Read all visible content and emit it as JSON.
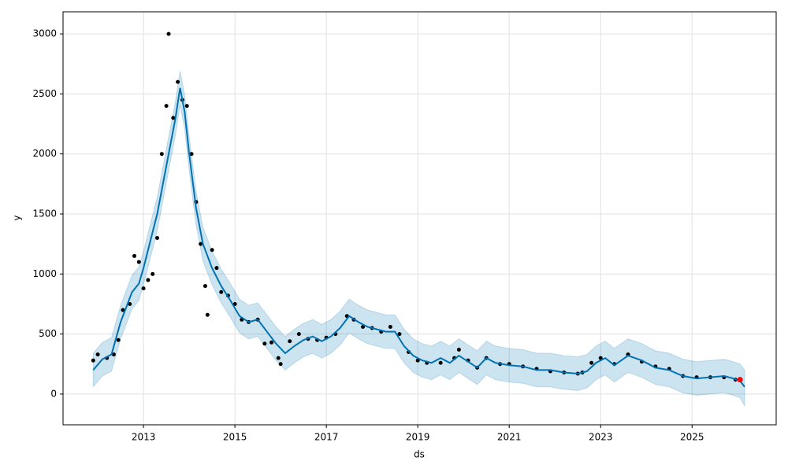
{
  "chart_data": {
    "type": "line",
    "xlabel": "ds",
    "ylabel": "y",
    "xlim": [
      2011.24,
      2026.84
    ],
    "ylim": [
      -256,
      3184
    ],
    "xticks": [
      2013,
      2015,
      2017,
      2019,
      2021,
      2023,
      2025
    ],
    "yticks": [
      0,
      500,
      1000,
      1500,
      2000,
      2500,
      3000
    ],
    "grid": true,
    "forecast": {
      "color": "#0072b2",
      "x": [
        2011.9,
        2012.1,
        2012.3,
        2012.5,
        2012.6,
        2012.75,
        2012.9,
        2013.0,
        2013.1,
        2013.3,
        2013.5,
        2013.7,
        2013.8,
        2013.9,
        2014.0,
        2014.15,
        2014.3,
        2014.5,
        2014.7,
        2014.9,
        2015.1,
        2015.3,
        2015.5,
        2015.7,
        2015.9,
        2016.1,
        2016.3,
        2016.5,
        2016.7,
        2016.9,
        2017.1,
        2017.3,
        2017.5,
        2017.7,
        2017.9,
        2018.1,
        2018.3,
        2018.5,
        2018.7,
        2018.9,
        2019.1,
        2019.3,
        2019.5,
        2019.7,
        2019.9,
        2020.1,
        2020.3,
        2020.5,
        2020.7,
        2021.0,
        2021.3,
        2021.6,
        2021.9,
        2022.2,
        2022.5,
        2022.7,
        2022.9,
        2023.1,
        2023.3,
        2023.6,
        2023.9,
        2024.2,
        2024.5,
        2024.8,
        2025.1,
        2025.4,
        2025.7,
        2025.9,
        2026.05,
        2026.15
      ],
      "values": [
        200,
        290,
        330,
        600,
        700,
        850,
        920,
        1050,
        1200,
        1500,
        1900,
        2300,
        2550,
        2350,
        2000,
        1550,
        1250,
        1050,
        900,
        780,
        650,
        600,
        620,
        520,
        420,
        340,
        400,
        450,
        480,
        440,
        480,
        550,
        650,
        600,
        560,
        540,
        520,
        520,
        400,
        320,
        280,
        260,
        300,
        260,
        320,
        270,
        220,
        300,
        260,
        240,
        230,
        200,
        200,
        180,
        170,
        190,
        260,
        300,
        240,
        320,
        280,
        220,
        200,
        150,
        130,
        140,
        150,
        130,
        110,
        60
      ],
      "lower": [
        60,
        150,
        190,
        460,
        560,
        710,
        780,
        910,
        1060,
        1360,
        1760,
        2160,
        2410,
        2210,
        1860,
        1410,
        1110,
        910,
        760,
        640,
        510,
        460,
        480,
        380,
        280,
        200,
        260,
        310,
        340,
        300,
        340,
        410,
        510,
        460,
        420,
        400,
        380,
        380,
        260,
        180,
        140,
        120,
        160,
        120,
        180,
        130,
        80,
        160,
        120,
        100,
        90,
        60,
        60,
        40,
        30,
        50,
        120,
        160,
        100,
        180,
        140,
        80,
        60,
        10,
        -10,
        0,
        10,
        -10,
        -30,
        -100
      ],
      "upper": [
        340,
        430,
        470,
        740,
        840,
        990,
        1060,
        1190,
        1340,
        1640,
        2040,
        2440,
        2690,
        2490,
        2140,
        1690,
        1390,
        1190,
        1040,
        920,
        790,
        740,
        760,
        660,
        560,
        480,
        540,
        590,
        620,
        580,
        620,
        690,
        790,
        740,
        700,
        680,
        660,
        660,
        540,
        460,
        420,
        400,
        440,
        400,
        460,
        410,
        360,
        440,
        400,
        380,
        370,
        340,
        340,
        320,
        310,
        330,
        400,
        440,
        380,
        460,
        420,
        360,
        340,
        290,
        270,
        280,
        290,
        270,
        250,
        200
      ]
    },
    "observed": {
      "color": "#000000",
      "x": [
        2011.9,
        2012.0,
        2012.2,
        2012.35,
        2012.45,
        2012.55,
        2012.7,
        2012.8,
        2012.9,
        2013.0,
        2013.1,
        2013.2,
        2013.3,
        2013.4,
        2013.5,
        2013.55,
        2013.65,
        2013.75,
        2013.85,
        2013.95,
        2014.05,
        2014.15,
        2014.25,
        2014.35,
        2014.4,
        2014.5,
        2014.6,
        2014.7,
        2014.85,
        2015.0,
        2015.15,
        2015.3,
        2015.5,
        2015.65,
        2015.8,
        2015.95,
        2016.0,
        2016.2,
        2016.4,
        2016.6,
        2016.8,
        2017.0,
        2017.2,
        2017.45,
        2017.6,
        2017.8,
        2018.0,
        2018.2,
        2018.4,
        2018.6,
        2018.8,
        2019.0,
        2019.2,
        2019.5,
        2019.8,
        2019.9,
        2020.1,
        2020.3,
        2020.5,
        2020.8,
        2021.0,
        2021.3,
        2021.6,
        2021.9,
        2022.2,
        2022.5,
        2022.6,
        2022.8,
        2023.0,
        2023.3,
        2023.6,
        2023.9,
        2024.2,
        2024.5,
        2024.8,
        2025.1,
        2025.4,
        2025.7,
        2025.95
      ],
      "values": [
        280,
        330,
        300,
        330,
        450,
        700,
        750,
        1150,
        1100,
        880,
        950,
        1000,
        1300,
        2000,
        2400,
        3000,
        2300,
        2600,
        2450,
        2400,
        2000,
        1600,
        1250,
        900,
        660,
        1200,
        1050,
        850,
        820,
        750,
        620,
        600,
        620,
        420,
        430,
        300,
        250,
        440,
        500,
        460,
        450,
        470,
        500,
        650,
        620,
        560,
        550,
        520,
        560,
        500,
        350,
        280,
        260,
        260,
        300,
        370,
        280,
        220,
        300,
        250,
        250,
        230,
        210,
        190,
        180,
        170,
        180,
        260,
        300,
        250,
        330,
        270,
        230,
        210,
        150,
        140,
        140,
        140,
        120
      ]
    },
    "latest": {
      "color": "#ff0000",
      "x": [
        2026.05
      ],
      "values": [
        120
      ]
    }
  }
}
